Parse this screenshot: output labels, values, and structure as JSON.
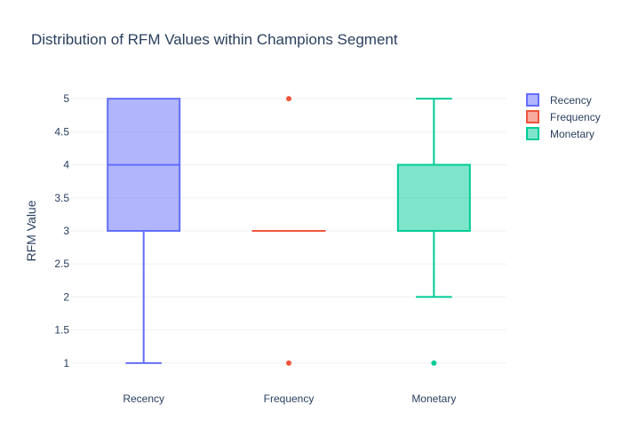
{
  "chart_data": {
    "type": "box",
    "title": "Distribution of RFM Values within Champions Segment",
    "xlabel": "",
    "ylabel": "RFM Value",
    "ylim": [
      0.85,
      5.15
    ],
    "y_ticks": [
      1,
      1.5,
      2,
      2.5,
      3,
      3.5,
      4,
      4.5,
      5
    ],
    "y_tick_labels": [
      "1",
      "1.5",
      "2",
      "2.5",
      "3",
      "3.5",
      "4",
      "4.5",
      "5"
    ],
    "categories": [
      "Recency",
      "Frequency",
      "Monetary"
    ],
    "grid": true,
    "legend_position": "top-right",
    "series": [
      {
        "name": "Recency",
        "color": "#636efa",
        "min": 1,
        "q1": 3,
        "median": 4,
        "q3": 5,
        "max": 5,
        "outliers": []
      },
      {
        "name": "Frequency",
        "color": "#ef553b",
        "min": 3,
        "q1": 3,
        "median": 3,
        "q3": 3,
        "max": 3,
        "outliers": [
          1,
          5
        ]
      },
      {
        "name": "Monetary",
        "color": "#00cc96",
        "min": 2,
        "q1": 3,
        "median": 3,
        "q3": 4,
        "max": 5,
        "outliers": [
          1
        ]
      }
    ]
  }
}
